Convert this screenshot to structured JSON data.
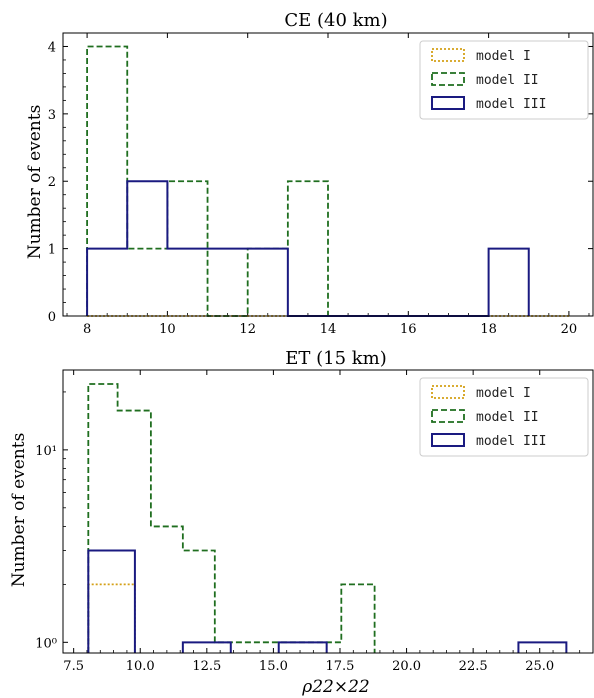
{
  "chart_data": [
    {
      "type": "step-histogram",
      "title": "CE (40 km)",
      "xlabel": "",
      "ylabel": "Number of events",
      "xlim": [
        7.4,
        20.6
      ],
      "ylim": [
        0,
        4.2
      ],
      "yscale": "linear",
      "x_ticks": [
        8,
        10,
        12,
        14,
        16,
        18,
        20
      ],
      "y_ticks": [
        0,
        1,
        2,
        3,
        4
      ],
      "legend_position": "top-right",
      "series": [
        {
          "name": "model I",
          "color": "#d4a017",
          "style": "dotted",
          "steps": [
            [
              8,
              0
            ],
            [
              20,
              0
            ]
          ]
        },
        {
          "name": "model II",
          "color": "#1f6e1f",
          "style": "dashed",
          "steps": [
            [
              8,
              4
            ],
            [
              9,
              1
            ],
            [
              10,
              2
            ],
            [
              11,
              0
            ],
            [
              12,
              1
            ],
            [
              13,
              2
            ],
            [
              14,
              0
            ]
          ]
        },
        {
          "name": "model III",
          "color": "#1a1a80",
          "style": "solid",
          "steps": [
            [
              8,
              1
            ],
            [
              9,
              2
            ],
            [
              10,
              1
            ],
            [
              13,
              0
            ],
            [
              18,
              1
            ],
            [
              19,
              0
            ]
          ]
        }
      ]
    },
    {
      "type": "step-histogram",
      "title": "ET (15 km)",
      "xlabel": "ρ22×22",
      "ylabel": "Number of events",
      "xlim": [
        7.1,
        27.0
      ],
      "ylim": [
        0.88,
        26
      ],
      "yscale": "log",
      "x_ticks": [
        "7.5",
        "10.0",
        "12.5",
        "15.0",
        "17.5",
        "20.0",
        "22.5",
        "25.0"
      ],
      "y_ticks": [
        "10⁰",
        "10¹"
      ],
      "legend_position": "top-right",
      "series": [
        {
          "name": "model I",
          "color": "#d4a017",
          "style": "dotted",
          "steps": [
            [
              8.05,
              2
            ],
            [
              9.8,
              null
            ]
          ]
        },
        {
          "name": "model II",
          "color": "#1f6e1f",
          "style": "dashed",
          "steps": [
            [
              8.05,
              22
            ],
            [
              9.15,
              16
            ],
            [
              10.4,
              4
            ],
            [
              11.6,
              3
            ],
            [
              12.8,
              1
            ],
            [
              16.35,
              1
            ],
            [
              17.55,
              2
            ],
            [
              18.8,
              null
            ]
          ]
        },
        {
          "name": "model III",
          "color": "#1a1a80",
          "style": "solid",
          "steps": [
            [
              8.05,
              3
            ],
            [
              9.8,
              null
            ],
            [
              11.6,
              1
            ],
            [
              13.4,
              null
            ],
            [
              15.2,
              1
            ],
            [
              17.0,
              null
            ],
            [
              24.2,
              1
            ],
            [
              26.0,
              null
            ]
          ]
        }
      ]
    }
  ]
}
